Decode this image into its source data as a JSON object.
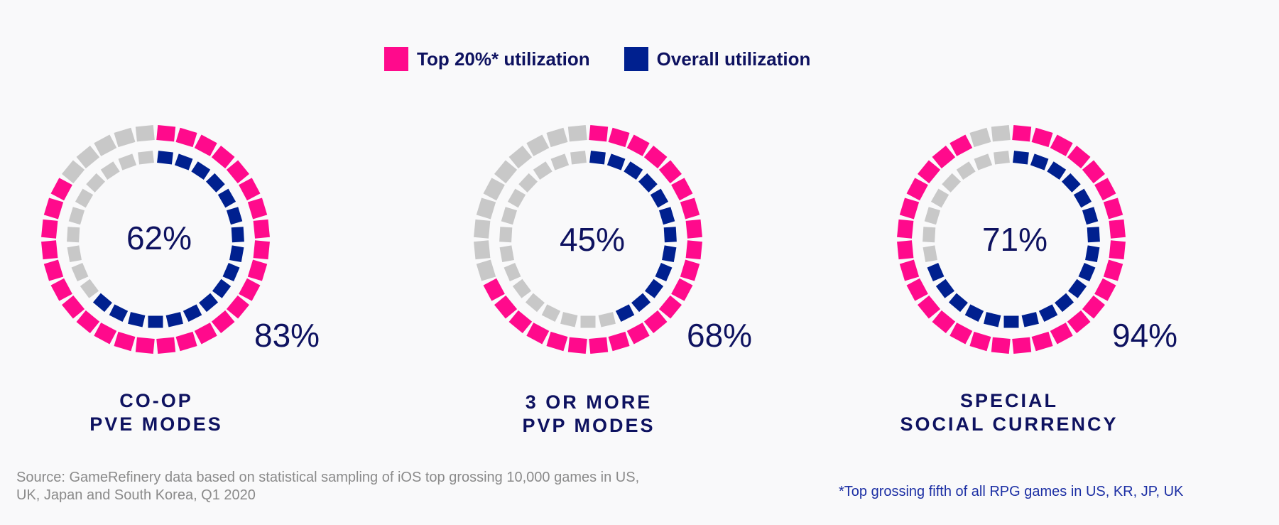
{
  "legend": {
    "items": [
      {
        "label": "Top 20%* utilization",
        "color": "#ff0a8c"
      },
      {
        "label": "Overall utilization",
        "color": "#00208f"
      }
    ]
  },
  "colors": {
    "top20": "#ff0a8c",
    "overall": "#00208f",
    "empty": "#c8c8c8"
  },
  "chart_data": [
    {
      "type": "donut",
      "label_line1": "CO-OP",
      "label_line2": "PVE MODES",
      "series": [
        {
          "name": "Top 20%* utilization",
          "value": 83,
          "display": "83%"
        },
        {
          "name": "Overall utilization",
          "value": 62,
          "display": "62%"
        }
      ]
    },
    {
      "type": "donut",
      "label_line1": "3 OR MORE",
      "label_line2": "PVP MODES",
      "series": [
        {
          "name": "Top 20%* utilization",
          "value": 68,
          "display": "68%"
        },
        {
          "name": "Overall utilization",
          "value": 45,
          "display": "45%"
        }
      ]
    },
    {
      "type": "donut",
      "label_line1": "SPECIAL",
      "label_line2": "SOCIAL CURRENCY",
      "series": [
        {
          "name": "Top 20%* utilization",
          "value": 94,
          "display": "94%"
        },
        {
          "name": "Overall utilization",
          "value": 71,
          "display": "71%"
        }
      ]
    }
  ],
  "source_text": "Source: GameRefinery data based on statistical sampling of iOS top grossing 10,000 games in US, UK, Japan and South Korea, Q1 2020",
  "footnote": "*Top grossing fifth of all RPG games in US, KR, JP, UK"
}
